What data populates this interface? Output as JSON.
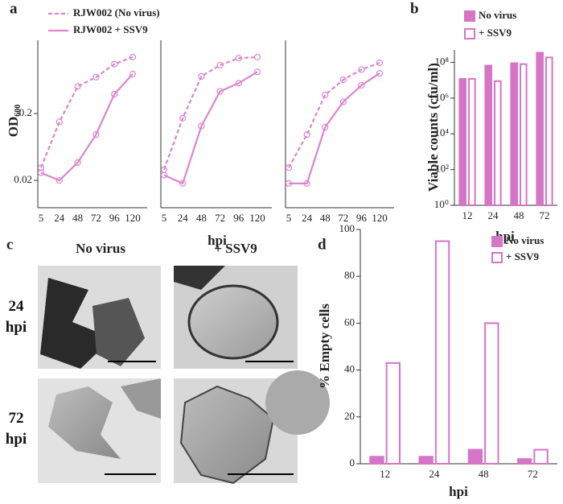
{
  "chart_data": [
    {
      "type": "line",
      "panel": "a",
      "y_label": "OD",
      "y_label_sub": "600",
      "log_y": true,
      "categories": [
        "5",
        "24",
        "48",
        "72",
        "96",
        "120"
      ],
      "ylim": [
        0.0078,
        2.5
      ],
      "yticks": [
        0.02,
        0.2
      ],
      "series": [
        {
          "name": "RJW002 (No virus)",
          "color": "#dd85cf",
          "dashed": true,
          "values": [
            0.031,
            0.15,
            0.51,
            0.7,
            1.1,
            1.4
          ]
        },
        {
          "name": "RJW002 + SSV9",
          "color": "#dd85cf",
          "dashed": false,
          "values": [
            0.026,
            0.02,
            0.037,
            0.097,
            0.39,
            0.78
          ]
        }
      ]
    },
    {
      "type": "line",
      "x_label": "hpi",
      "log_y": true,
      "categories": [
        "5",
        "24",
        "48",
        "72",
        "96",
        "120"
      ],
      "ylim": [
        0.0078,
        2.5
      ],
      "series": [
        {
          "color": "#dd85cf",
          "dashed": true,
          "values": [
            0.029,
            0.17,
            0.72,
            1.06,
            1.35,
            1.4
          ]
        },
        {
          "color": "#dd85cf",
          "dashed": false,
          "values": [
            0.024,
            0.018,
            0.13,
            0.43,
            0.57,
            0.84
          ]
        }
      ]
    },
    {
      "type": "line",
      "log_y": true,
      "categories": [
        "5",
        "24",
        "48",
        "72",
        "96",
        "120"
      ],
      "ylim": [
        0.0078,
        2.5
      ],
      "series": [
        {
          "color": "#dd85cf",
          "dashed": true,
          "values": [
            0.031,
            0.097,
            0.38,
            0.64,
            0.91,
            1.15
          ]
        },
        {
          "color": "#dd85cf",
          "dashed": false,
          "values": [
            0.018,
            0.018,
            0.125,
            0.3,
            0.53,
            0.8
          ]
        }
      ]
    },
    {
      "type": "bar",
      "panel": "b",
      "y_label": "Viable counts (cfu/ml)",
      "x_label": "hpi",
      "log_y": true,
      "categories": [
        "12",
        "24",
        "48",
        "72"
      ],
      "ylim": [
        1,
        500000000
      ],
      "yticks": [
        {
          "value": 1,
          "label": "10⁰"
        },
        {
          "value": 100,
          "label": "10²"
        },
        {
          "value": 10000,
          "label": "10⁴"
        },
        {
          "value": 1000000,
          "label": "10⁶"
        },
        {
          "value": 100000000,
          "label": "10⁸"
        }
      ],
      "series": [
        {
          "name": "No virus",
          "color": "#d674c6",
          "filled": true,
          "values": [
            12000000,
            66000000,
            90000000,
            350000000
          ]
        },
        {
          "name": "+ SSV9",
          "color": "#d674c6",
          "filled": false,
          "values": [
            12000000,
            9000000,
            80000000,
            190000000
          ]
        }
      ]
    },
    {
      "type": "bar",
      "panel": "d",
      "y_label": "% Empty cells",
      "x_label": "hpi",
      "log_y": false,
      "categories": [
        "12",
        "24",
        "48",
        "72"
      ],
      "ylim": [
        0,
        100
      ],
      "yticks": [
        0,
        20,
        40,
        60,
        80,
        100
      ],
      "series": [
        {
          "name": "No virus",
          "color": "#d674c6",
          "filled": true,
          "values": [
            3,
            3,
            6,
            2
          ]
        },
        {
          "name": "+ SSV9",
          "color": "#d674c6",
          "filled": false,
          "values": [
            43,
            95,
            60,
            6
          ]
        }
      ]
    }
  ],
  "micrographs": {
    "panel": "c",
    "columns": [
      "No virus",
      "+ SSV9"
    ],
    "rows": [
      "24 hpi",
      "72 hpi"
    ]
  }
}
